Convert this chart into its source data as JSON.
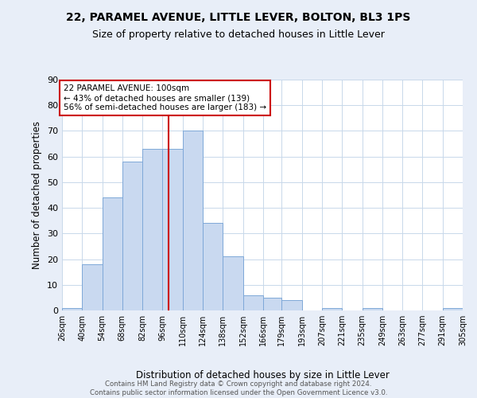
{
  "title": "22, PARAMEL AVENUE, LITTLE LEVER, BOLTON, BL3 1PS",
  "subtitle": "Size of property relative to detached houses in Little Lever",
  "xlabel": "Distribution of detached houses by size in Little Lever",
  "ylabel": "Number of detached properties",
  "bin_edges": [
    26,
    40,
    54,
    68,
    82,
    96,
    110,
    124,
    138,
    152,
    166,
    179,
    193,
    207,
    221,
    235,
    249,
    263,
    277,
    291,
    305
  ],
  "bar_heights": [
    1,
    18,
    44,
    58,
    63,
    63,
    70,
    34,
    21,
    6,
    5,
    4,
    0,
    1,
    0,
    1,
    0,
    0,
    0,
    1
  ],
  "bar_color": "#c9d9f0",
  "bar_edge_color": "#7ea8d8",
  "vline_x": 100,
  "vline_color": "#cc0000",
  "annotation_title": "22 PARAMEL AVENUE: 100sqm",
  "annotation_line1": "← 43% of detached houses are smaller (139)",
  "annotation_line2": "56% of semi-detached houses are larger (183) →",
  "annotation_box_edge_color": "#cc0000",
  "ylim": [
    0,
    90
  ],
  "yticks": [
    0,
    10,
    20,
    30,
    40,
    50,
    60,
    70,
    80,
    90
  ],
  "tick_labels": [
    "26sqm",
    "40sqm",
    "54sqm",
    "68sqm",
    "82sqm",
    "96sqm",
    "110sqm",
    "124sqm",
    "138sqm",
    "152sqm",
    "166sqm",
    "179sqm",
    "193sqm",
    "207sqm",
    "221sqm",
    "235sqm",
    "249sqm",
    "263sqm",
    "277sqm",
    "291sqm",
    "305sqm"
  ],
  "footer_line1": "Contains HM Land Registry data © Crown copyright and database right 2024.",
  "footer_line2": "Contains public sector information licensed under the Open Government Licence v3.0.",
  "bg_color": "#e8eef8",
  "plot_bg_color": "#ffffff",
  "grid_color": "#c8d8ea",
  "title_fontsize": 10,
  "subtitle_fontsize": 9
}
